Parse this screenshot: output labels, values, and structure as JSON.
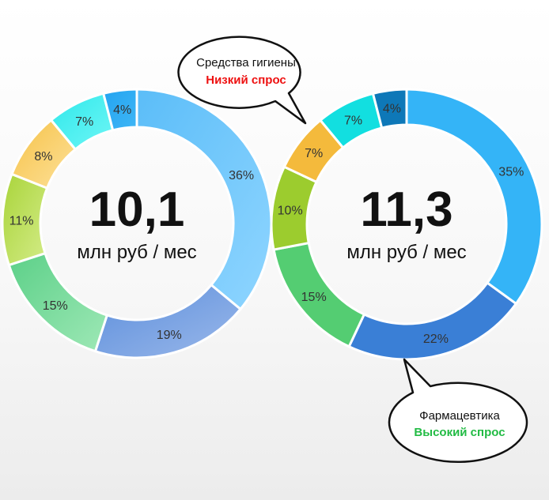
{
  "chart_data": [
    {
      "type": "pie",
      "center_value": "10,1",
      "center_unit": "млн руб / мес",
      "slices": [
        {
          "label": "36%",
          "value": 36,
          "color": "#5bbdf8",
          "color2": "#8fd5ff"
        },
        {
          "label": "19%",
          "value": 19,
          "color": "#5d8fdc",
          "color2": "#9ab8ea"
        },
        {
          "label": "15%",
          "value": 15,
          "color": "#5cd088",
          "color2": "#9ee8b6"
        },
        {
          "label": "11%",
          "value": 11,
          "color": "#a9d43a",
          "color2": "#d4ec88"
        },
        {
          "label": "8%",
          "value": 8,
          "color": "#f6c247",
          "color2": "#fde19a"
        },
        {
          "label": "7%",
          "value": 7,
          "color": "#2ee8ea",
          "color2": "#6ff6f6"
        },
        {
          "label": "4%",
          "value": 4,
          "color": "#23a4f0",
          "color2": "#3fb6f6"
        }
      ]
    },
    {
      "type": "pie",
      "center_value": "11,3",
      "center_unit": "млн руб / мес",
      "slices": [
        {
          "label": "35%",
          "value": 35,
          "color": "#34b4f7",
          "color2": "#34b4f7"
        },
        {
          "label": "22%",
          "value": 22,
          "color": "#3a7fd6",
          "color2": "#3a7fd6"
        },
        {
          "label": "15%",
          "value": 15,
          "color": "#54cd72",
          "color2": "#54cd72"
        },
        {
          "label": "10%",
          "value": 10,
          "color": "#9ccc2e",
          "color2": "#9ccc2e"
        },
        {
          "label": "7%",
          "value": 7,
          "color": "#f4ba3c",
          "color2": "#f4ba3c"
        },
        {
          "label": "7%",
          "value": 7,
          "color": "#12dfe0",
          "color2": "#12dfe0"
        },
        {
          "label": "4%",
          "value": 4,
          "color": "#0e78b8",
          "color2": "#0e78b8"
        }
      ]
    }
  ],
  "callouts": [
    {
      "title": "Средства гигиены",
      "subtitle": "Низкий спрос",
      "subtitle_color": "#ee1111"
    },
    {
      "title": "Фармацевтика",
      "subtitle": "Высокий спрос",
      "subtitle_color": "#22bb44"
    }
  ]
}
